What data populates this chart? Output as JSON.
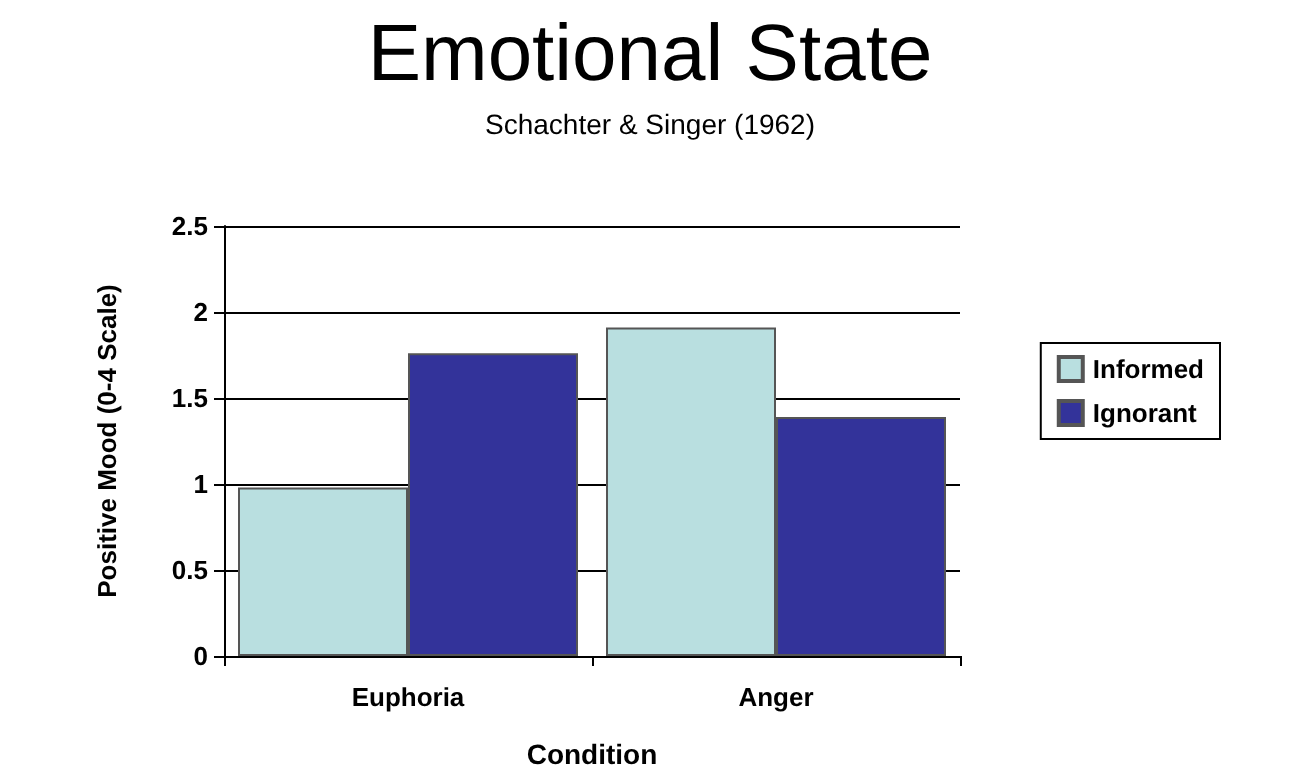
{
  "chart_data": {
    "type": "bar",
    "title": "Emotional State",
    "subtitle": "Schachter & Singer (1962)",
    "xlabel": "Condition",
    "ylabel": "Positive Mood (0-4 Scale)",
    "categories": [
      "Euphoria",
      "Anger"
    ],
    "series": [
      {
        "name": "Informed",
        "color": "#b9dfe0",
        "values": [
          0.98,
          1.91
        ]
      },
      {
        "name": "Ignorant",
        "color": "#33339a",
        "values": [
          1.76,
          1.39
        ]
      }
    ],
    "ylim": [
      0,
      2.5
    ],
    "yticks": [
      0,
      0.5,
      1,
      1.5,
      2,
      2.5
    ],
    "grid": "y",
    "legend": "right"
  }
}
